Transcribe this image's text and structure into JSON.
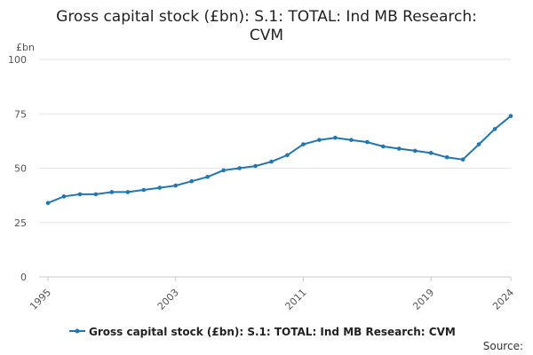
{
  "chart_data": {
    "type": "line",
    "title_lines": [
      "Gross capital stock (£bn): S.1: TOTAL: Ind MB Research:",
      "CVM"
    ],
    "ylabel": "£bn",
    "ylim": [
      0,
      100
    ],
    "yticks": [
      0,
      25,
      50,
      75,
      100
    ],
    "xlim": [
      1995,
      2024
    ],
    "xticks": [
      1995,
      2003,
      2011,
      2019,
      2024
    ],
    "series": [
      {
        "name": "Gross capital stock (£bn): S.1: TOTAL: Ind MB Research: CVM",
        "color": "#1f77b4",
        "x": [
          1995,
          1996,
          1997,
          1998,
          1999,
          2000,
          2001,
          2002,
          2003,
          2004,
          2005,
          2006,
          2007,
          2008,
          2009,
          2010,
          2011,
          2012,
          2013,
          2014,
          2015,
          2016,
          2017,
          2018,
          2019,
          2020,
          2021,
          2022,
          2023,
          2024
        ],
        "values": [
          34,
          37,
          38,
          38,
          39,
          39,
          40,
          41,
          42,
          44,
          46,
          49,
          50,
          51,
          53,
          56,
          61,
          63,
          64,
          63,
          62,
          60,
          59,
          58,
          57,
          55,
          54,
          61,
          68,
          74
        ]
      }
    ]
  },
  "legend_label": "Gross capital stock (£bn): S.1: TOTAL: Ind MB Research: CVM",
  "source_label": "Source:"
}
